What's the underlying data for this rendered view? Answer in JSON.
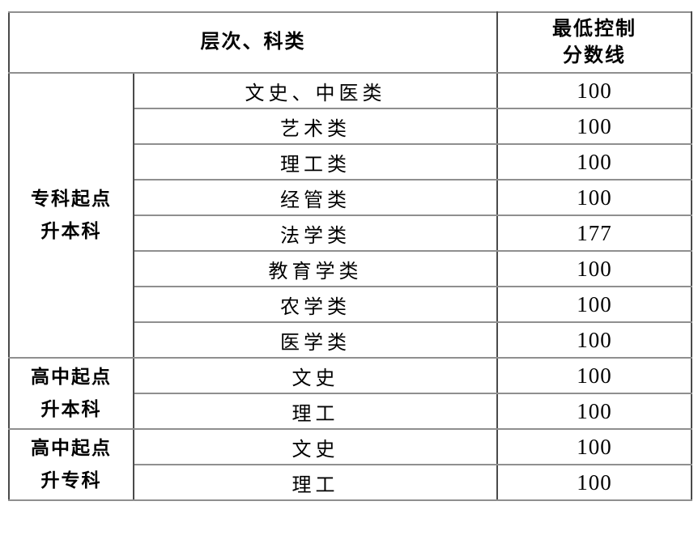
{
  "table": {
    "header": {
      "level_category_label": "层次、科类",
      "min_score_lines": [
        "最低控制",
        "分数线"
      ]
    },
    "groups": [
      {
        "label_lines": [
          "专科起点",
          "升本科"
        ],
        "rows": [
          {
            "category": "文史、中医类",
            "score": "100"
          },
          {
            "category": "艺术类",
            "score": "100"
          },
          {
            "category": "理工类",
            "score": "100"
          },
          {
            "category": "经管类",
            "score": "100"
          },
          {
            "category": "法学类",
            "score": "177"
          },
          {
            "category": "教育学类",
            "score": "100"
          },
          {
            "category": "农学类",
            "score": "100"
          },
          {
            "category": "医学类",
            "score": "100"
          }
        ]
      },
      {
        "label_lines": [
          "高中起点",
          "升本科"
        ],
        "rows": [
          {
            "category": "文史",
            "score": "100"
          },
          {
            "category": "理工",
            "score": "100"
          }
        ]
      },
      {
        "label_lines": [
          "高中起点",
          "升专科"
        ],
        "rows": [
          {
            "category": "文史",
            "score": "100"
          },
          {
            "category": "理工",
            "score": "100"
          }
        ]
      }
    ]
  },
  "colors": {
    "background": "#ffffff",
    "text": "#000000",
    "border_vertical": "#4a4a4a",
    "border_horizontal": "#8f8f8f"
  }
}
